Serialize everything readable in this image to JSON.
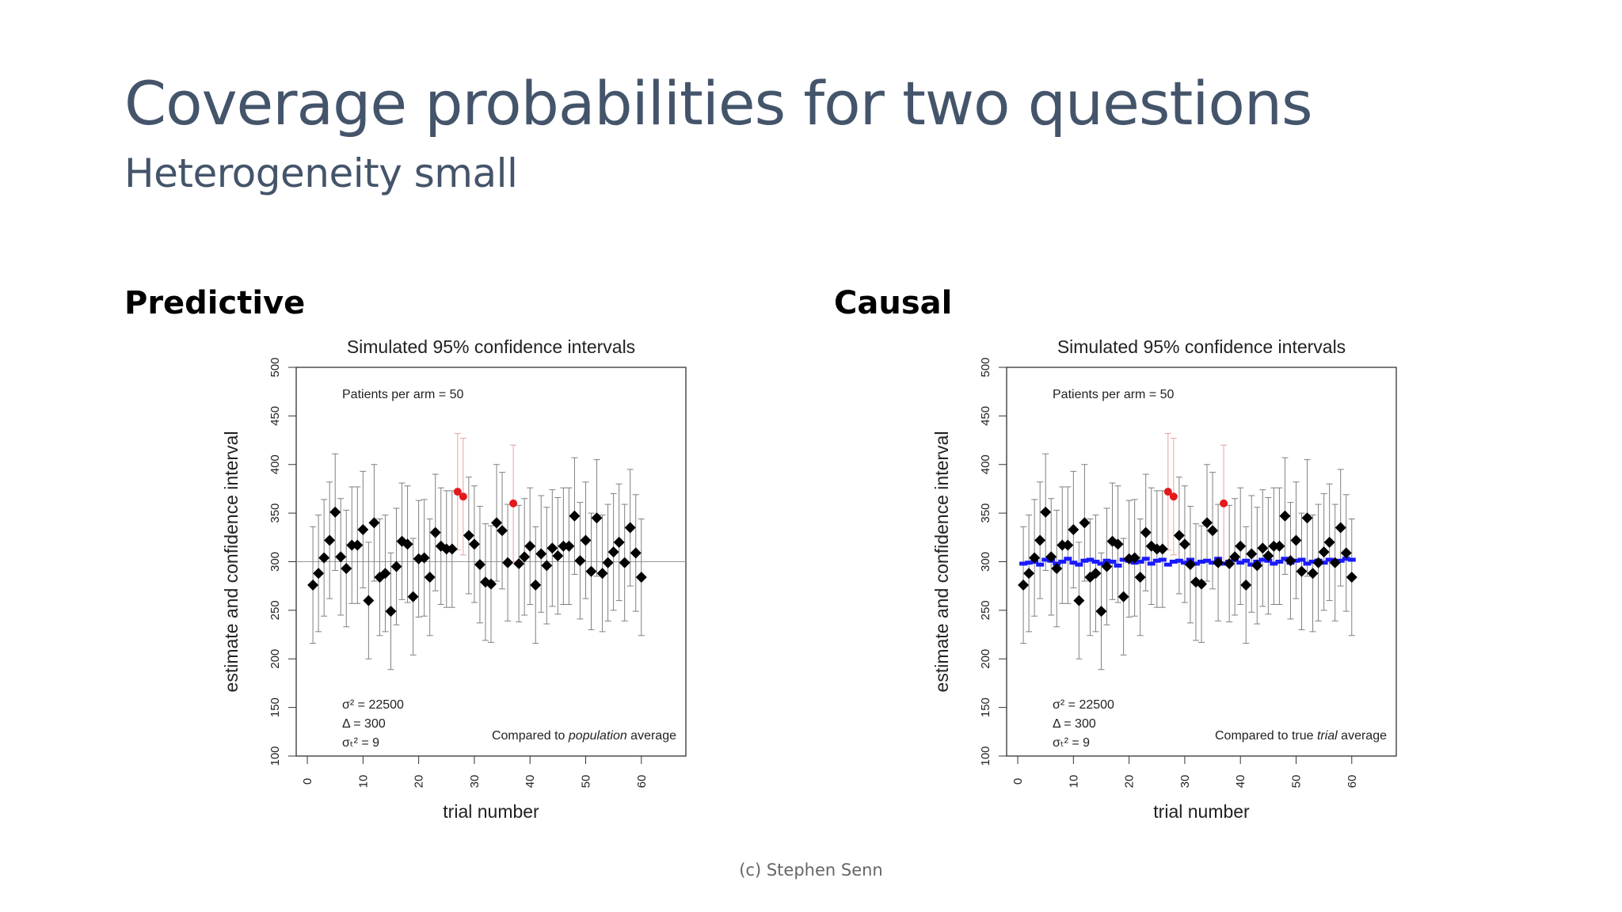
{
  "slide": {
    "title": "Coverage probabilities for two questions",
    "subtitle": "Heterogeneity small",
    "footer": "(c) Stephen Senn"
  },
  "panels": [
    {
      "label": "Predictive"
    },
    {
      "label": "Causal"
    }
  ],
  "colors": {
    "title": "#44546a",
    "point": "#000000",
    "miss": "#e31a1c",
    "true_line": "#1a1aff",
    "whisker": "#808080"
  },
  "chart_data": [
    {
      "type": "scatter",
      "title": "Simulated 95% confidence intervals",
      "xlabel": "trial number",
      "ylabel": "estimate and confidence interval",
      "xlim": [
        -2,
        68
      ],
      "ylim": [
        100,
        500
      ],
      "xticks": [
        0,
        10,
        20,
        30,
        40,
        50,
        60
      ],
      "yticks": [
        100,
        150,
        200,
        250,
        300,
        350,
        400,
        450,
        500
      ],
      "grid": false,
      "reference_line": 300,
      "interval_halfwidth": 60,
      "top_annotation": "Patients per arm = 50",
      "params": [
        "σ² = 22500",
        "Δ = 300",
        "σₜ² = 9"
      ],
      "note_prefix": "Compared to ",
      "note_emph": "population",
      "note_suffix": " average",
      "x": [
        1,
        2,
        3,
        4,
        5,
        6,
        7,
        8,
        9,
        10,
        11,
        12,
        13,
        14,
        15,
        16,
        17,
        18,
        19,
        20,
        21,
        22,
        23,
        24,
        25,
        26,
        27,
        28,
        29,
        30,
        31,
        32,
        33,
        34,
        35,
        36,
        37,
        38,
        39,
        40,
        41,
        42,
        43,
        44,
        45,
        46,
        47,
        48,
        49,
        50,
        51,
        52,
        53,
        54,
        55,
        56,
        57,
        58,
        59,
        60
      ],
      "estimate": [
        276,
        288,
        304,
        322,
        351,
        305,
        293,
        317,
        317,
        333,
        260,
        340,
        284,
        288,
        249,
        295,
        321,
        318,
        264,
        303,
        304,
        284,
        330,
        316,
        313,
        313,
        372,
        367,
        327,
        318,
        297,
        279,
        277,
        340,
        332,
        299,
        360,
        298,
        305,
        316,
        276,
        308,
        296,
        314,
        306,
        316,
        316,
        347,
        301,
        322,
        290,
        345,
        288,
        299,
        310,
        320,
        299,
        335,
        309,
        284
      ],
      "covers_true": [
        true,
        true,
        true,
        true,
        true,
        true,
        true,
        true,
        true,
        true,
        true,
        true,
        true,
        true,
        true,
        true,
        true,
        true,
        true,
        true,
        true,
        true,
        true,
        true,
        true,
        true,
        false,
        false,
        true,
        true,
        true,
        true,
        true,
        true,
        true,
        true,
        false,
        true,
        true,
        true,
        true,
        true,
        true,
        true,
        true,
        true,
        true,
        true,
        true,
        true,
        true,
        true,
        true,
        true,
        true,
        true,
        true,
        true,
        true,
        true
      ]
    },
    {
      "type": "scatter",
      "title": "Simulated 95% confidence intervals",
      "xlabel": "trial number",
      "ylabel": "estimate and confidence interval",
      "xlim": [
        -2,
        68
      ],
      "ylim": [
        100,
        500
      ],
      "xticks": [
        0,
        10,
        20,
        30,
        40,
        50,
        60
      ],
      "yticks": [
        100,
        150,
        200,
        250,
        300,
        350,
        400,
        450,
        500
      ],
      "grid": false,
      "interval_halfwidth": 60,
      "top_annotation": "Patients per arm = 50",
      "params": [
        "σ² = 22500",
        "Δ = 300",
        "σₜ² = 9"
      ],
      "note_prefix": "Compared to true ",
      "note_emph": "trial",
      "note_suffix": " average",
      "x": [
        1,
        2,
        3,
        4,
        5,
        6,
        7,
        8,
        9,
        10,
        11,
        12,
        13,
        14,
        15,
        16,
        17,
        18,
        19,
        20,
        21,
        22,
        23,
        24,
        25,
        26,
        27,
        28,
        29,
        30,
        31,
        32,
        33,
        34,
        35,
        36,
        37,
        38,
        39,
        40,
        41,
        42,
        43,
        44,
        45,
        46,
        47,
        48,
        49,
        50,
        51,
        52,
        53,
        54,
        55,
        56,
        57,
        58,
        59,
        60
      ],
      "estimate": [
        276,
        288,
        304,
        322,
        351,
        305,
        293,
        317,
        317,
        333,
        260,
        340,
        284,
        288,
        249,
        295,
        321,
        318,
        264,
        303,
        304,
        284,
        330,
        316,
        313,
        313,
        372,
        367,
        327,
        318,
        297,
        279,
        277,
        340,
        332,
        299,
        360,
        298,
        305,
        316,
        276,
        308,
        296,
        314,
        306,
        316,
        316,
        347,
        301,
        322,
        290,
        345,
        288,
        299,
        310,
        320,
        299,
        335,
        309,
        284
      ],
      "true_trial_average": [
        298,
        299,
        300,
        297,
        302,
        301,
        298,
        300,
        303,
        299,
        297,
        301,
        302,
        300,
        298,
        301,
        300,
        296,
        302,
        301,
        299,
        300,
        303,
        298,
        301,
        302,
        297,
        300,
        301,
        299,
        302,
        298,
        300,
        301,
        299,
        303,
        298,
        300,
        302,
        299,
        301,
        297,
        300,
        302,
        301,
        298,
        300,
        303,
        299,
        301,
        302,
        298,
        300,
        301,
        299,
        302,
        300,
        301,
        303,
        302
      ],
      "covers_true": [
        true,
        true,
        true,
        true,
        true,
        true,
        true,
        true,
        true,
        true,
        true,
        true,
        true,
        true,
        true,
        true,
        true,
        true,
        true,
        true,
        true,
        true,
        true,
        true,
        true,
        true,
        false,
        false,
        true,
        true,
        true,
        true,
        true,
        true,
        true,
        true,
        false,
        true,
        true,
        true,
        true,
        true,
        true,
        true,
        true,
        true,
        true,
        true,
        true,
        true,
        true,
        true,
        true,
        true,
        true,
        true,
        true,
        true,
        true,
        true
      ]
    }
  ]
}
